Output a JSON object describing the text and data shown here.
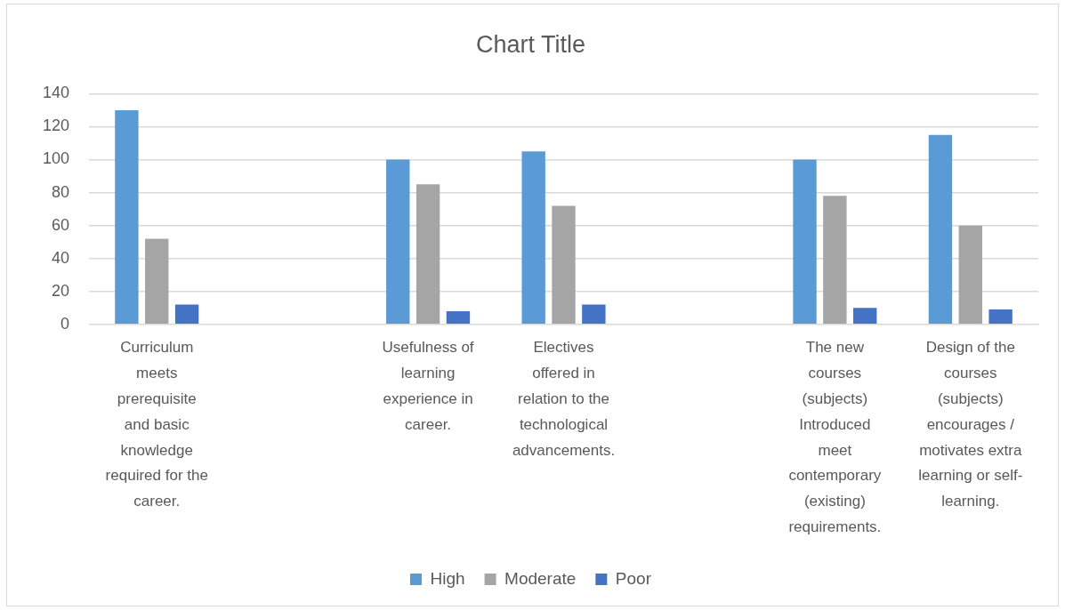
{
  "chart_data": {
    "type": "bar",
    "title": "Chart Title",
    "categories": [
      "Curriculum meets prerequisite and basic knowledge required for the career.",
      null,
      "Usefulness of learning experience in career.",
      "Electives offered in relation to the technological advancements.",
      null,
      "The new courses (subjects) Introduced meet contemporary (existing) requirements.",
      "Design of the courses (subjects) encourages / motivates extra learning or self-learning."
    ],
    "series": [
      {
        "name": "High",
        "color": "#5b9bd5",
        "values": [
          130,
          null,
          100,
          105,
          null,
          100,
          115
        ]
      },
      {
        "name": "Moderate",
        "color": "#a5a5a5",
        "values": [
          52,
          null,
          85,
          72,
          null,
          78,
          60
        ]
      },
      {
        "name": "Poor",
        "color": "#4472c4",
        "values": [
          12,
          null,
          8,
          12,
          null,
          10,
          9
        ]
      }
    ],
    "ylim": [
      0,
      140
    ],
    "yticks": [
      0,
      20,
      40,
      60,
      80,
      100,
      120,
      140
    ],
    "grid": "y",
    "legend": "bottom"
  }
}
